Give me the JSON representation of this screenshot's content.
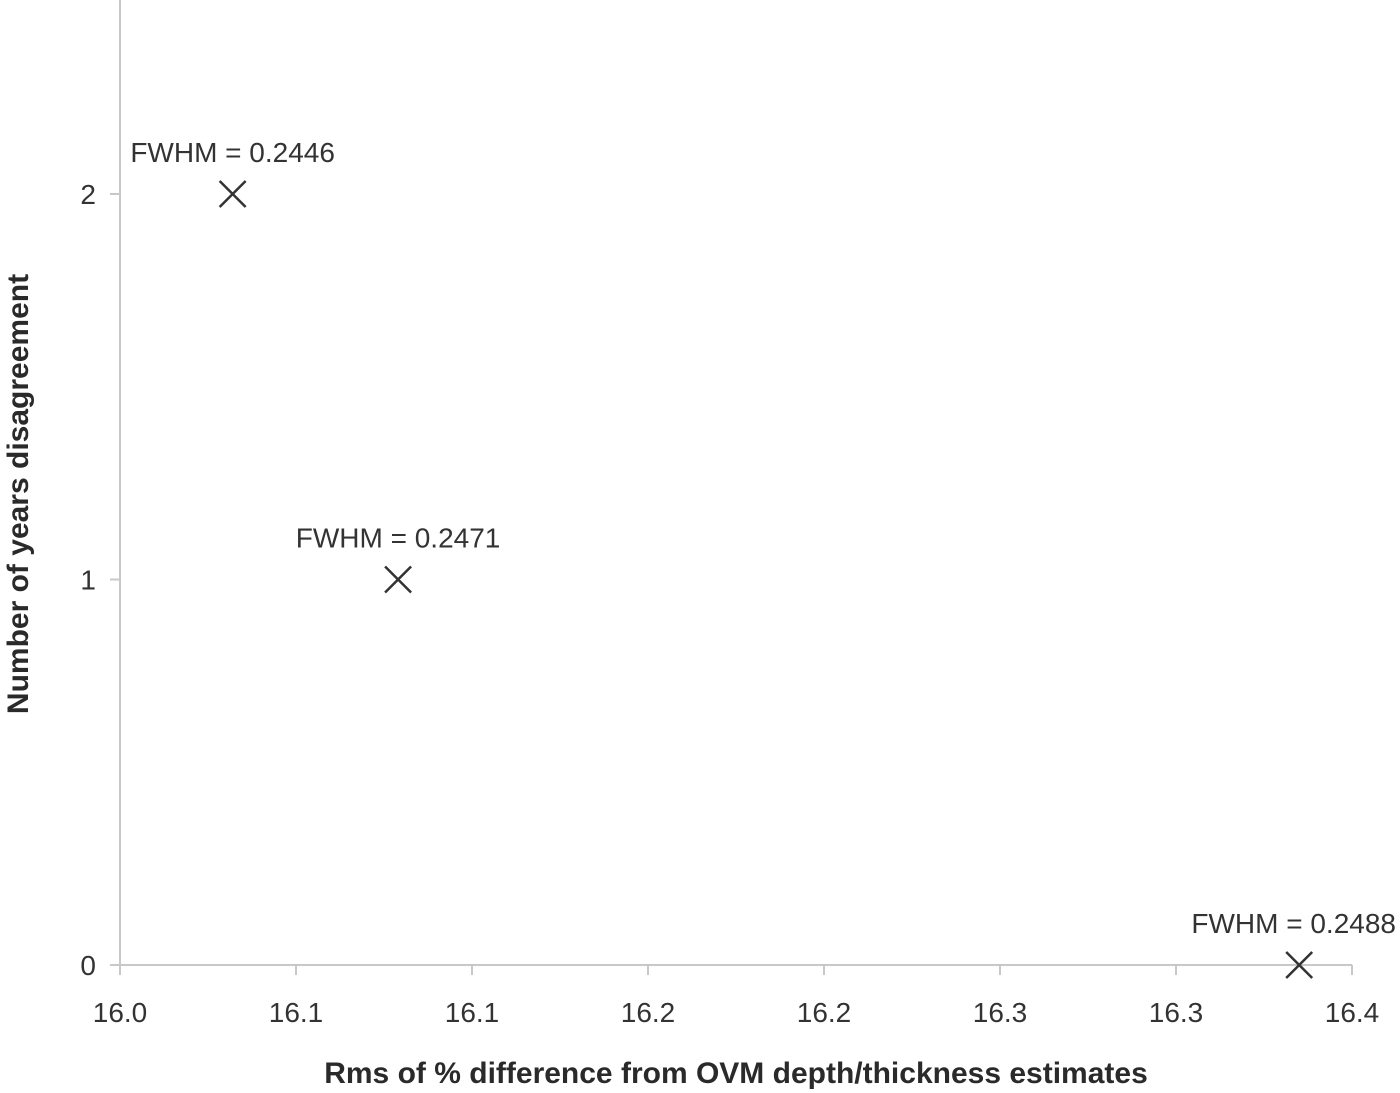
{
  "chart_data": {
    "type": "scatter",
    "title": "",
    "xlabel": "Rms of % difference from OVM depth/thickness estimates",
    "ylabel": "Number of years disagreement",
    "xlim": [
      16.0,
      16.35
    ],
    "ylim": [
      0,
      2.5
    ],
    "x_tick_labels": [
      "16.0",
      "16.1",
      "16.1",
      "16.2",
      "16.2",
      "16.3",
      "16.3",
      "16.4"
    ],
    "y_ticks": [
      0,
      1,
      2
    ],
    "y_tick_labels": [
      "0",
      "1",
      "2"
    ],
    "grid": false,
    "legend": "none",
    "marker": "x",
    "points": [
      {
        "x": 16.032,
        "y": 2,
        "label": "FWHM = 0.2446"
      },
      {
        "x": 16.079,
        "y": 1,
        "label": "FWHM = 0.2471"
      },
      {
        "x": 16.335,
        "y": 0,
        "label": "FWHM = 0.2488"
      }
    ]
  }
}
